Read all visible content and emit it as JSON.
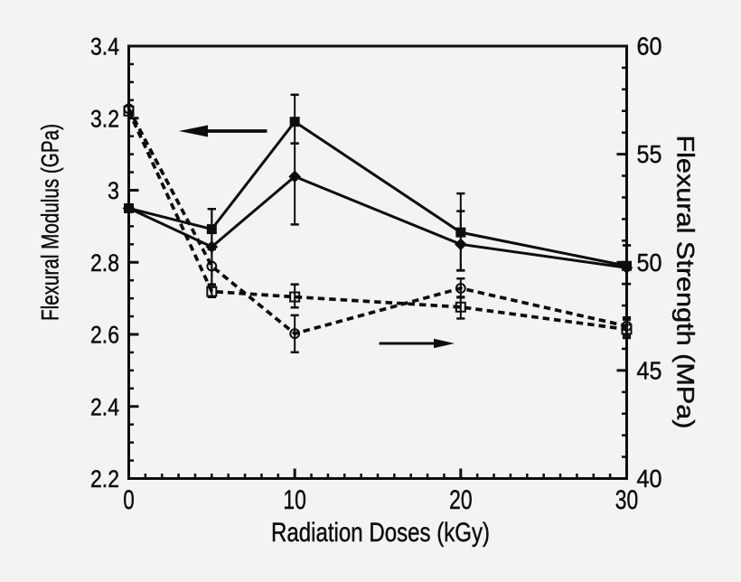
{
  "figure": {
    "kind": "dual-axis scientific line plot",
    "colors": {
      "background": "#f3f3f1",
      "ink": "#0d0d0d"
    }
  },
  "chart_data": {
    "type": "line",
    "title": "",
    "xlabel": "Radiation Doses (kGy)",
    "ylabel_left": "Flexural Modulus (GPa)",
    "ylabel_right": "Flexural Strength (MPa)",
    "xlim": [
      0,
      30
    ],
    "ylim_left": [
      2.2,
      3.4
    ],
    "ylim_right": [
      40,
      60
    ],
    "x_major_ticks": [
      0,
      10,
      20,
      30
    ],
    "x_minor_step": 1,
    "x_tick_labels": [
      "0",
      "10",
      "20",
      "30"
    ],
    "y_left_major_ticks": [
      2.2,
      2.4,
      2.6,
      2.8,
      3.0,
      3.2,
      3.4
    ],
    "y_left_minor_step": 0.05,
    "y_left_tick_labels": [
      "2.2",
      "2.4",
      "2.6",
      "2.8",
      "3",
      "3.2",
      "3.4"
    ],
    "y_right_major_ticks": [
      40,
      45,
      50,
      55,
      60
    ],
    "y_right_minor_step": 1,
    "y_right_tick_labels": [
      "40",
      "45",
      "50",
      "55",
      "60"
    ],
    "grid": false,
    "legend": "none (arrows point to the axis used by each line style)",
    "x": [
      0,
      5,
      10,
      20,
      30
    ],
    "series": [
      {
        "name": "flexural-modulus-a",
        "axis": "left",
        "units": "GPa",
        "line": "solid",
        "marker": "filled-square",
        "values": [
          2.95,
          2.892,
          3.19,
          2.883,
          2.79
        ],
        "yerr_minus": [
          0,
          0.056,
          0.06,
          0.105,
          0.05
        ],
        "yerr_plus": [
          0,
          0.056,
          0.075,
          0.108,
          0.057
        ]
      },
      {
        "name": "flexural-modulus-b",
        "axis": "left",
        "units": "GPa",
        "line": "solid",
        "marker": "filled-diamond",
        "values": [
          2.95,
          2.843,
          3.038,
          2.85,
          2.785
        ],
        "yerr_minus": [
          0,
          0.105,
          0.133,
          0.073,
          0.045
        ],
        "yerr_plus": [
          0,
          0.105,
          0.092,
          0.092,
          0.062
        ]
      },
      {
        "name": "flexural-strength-a",
        "axis": "right",
        "units": "MPa",
        "line": "dashed",
        "marker": "open-square",
        "values": [
          57.0,
          48.65,
          48.4,
          47.93,
          46.9
        ],
        "yerr_minus": [
          0,
          0.26,
          0.49,
          0.53,
          0.4
        ],
        "yerr_plus": [
          0,
          0.21,
          0.58,
          0.47,
          0.45
        ]
      },
      {
        "name": "flexural-strength-b",
        "axis": "right",
        "units": "MPa",
        "line": "dashed",
        "marker": "open-circle",
        "values": [
          57.1,
          49.82,
          46.7,
          48.8,
          47.05
        ],
        "yerr_minus": [
          0,
          0.84,
          0.86,
          0.43,
          0.45
        ],
        "yerr_plus": [
          0,
          0.84,
          0.85,
          0.45,
          0.4
        ]
      }
    ],
    "annotations": [
      {
        "name": "left-axis-arrow",
        "type": "arrow",
        "direction": "left",
        "meaning": "solid lines read on the left axis"
      },
      {
        "name": "right-axis-arrow",
        "type": "arrow",
        "direction": "right",
        "meaning": "dashed lines read on the right axis"
      }
    ]
  }
}
